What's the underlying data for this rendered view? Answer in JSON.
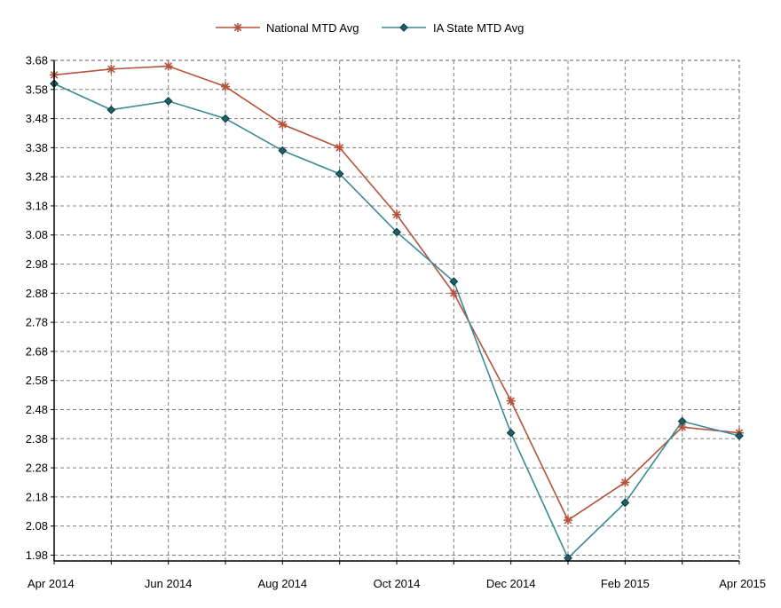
{
  "chart_data": {
    "type": "line",
    "title": "",
    "xlabel": "",
    "ylabel": "",
    "x": [
      "Apr 2014",
      "May 2014",
      "Jun 2014",
      "Jul 2014",
      "Aug 2014",
      "Sep 2014",
      "Oct 2014",
      "Nov 2014",
      "Dec 2014",
      "Jan 2015",
      "Feb 2015",
      "Mar 2015",
      "Apr 2015"
    ],
    "x_tick_labels": [
      "Apr 2014",
      "Jun 2014",
      "Aug 2014",
      "Oct 2014",
      "Dec 2014",
      "Feb 2015",
      "Apr 2015"
    ],
    "ylim": [
      1.96,
      3.68
    ],
    "y_ticks": [
      "1.98",
      "2.08",
      "2.18",
      "2.28",
      "2.38",
      "2.48",
      "2.58",
      "2.68",
      "2.78",
      "2.88",
      "2.98",
      "3.08",
      "3.18",
      "3.28",
      "3.38",
      "3.48",
      "3.58",
      "3.68"
    ],
    "grid": true,
    "legend_position": "top-center",
    "series": [
      {
        "name": "National MTD Avg",
        "color": "#b5533c",
        "marker": "asterisk",
        "values": [
          3.63,
          3.65,
          3.66,
          3.59,
          3.46,
          3.38,
          3.15,
          2.88,
          2.51,
          2.1,
          2.23,
          2.42,
          2.4
        ]
      },
      {
        "name": "IA State MTD Avg",
        "color": "#3b8a95",
        "marker": "diamond",
        "values": [
          3.6,
          3.51,
          3.54,
          3.48,
          3.37,
          3.29,
          3.09,
          2.92,
          2.4,
          1.97,
          2.16,
          2.44,
          2.39
        ]
      }
    ]
  }
}
